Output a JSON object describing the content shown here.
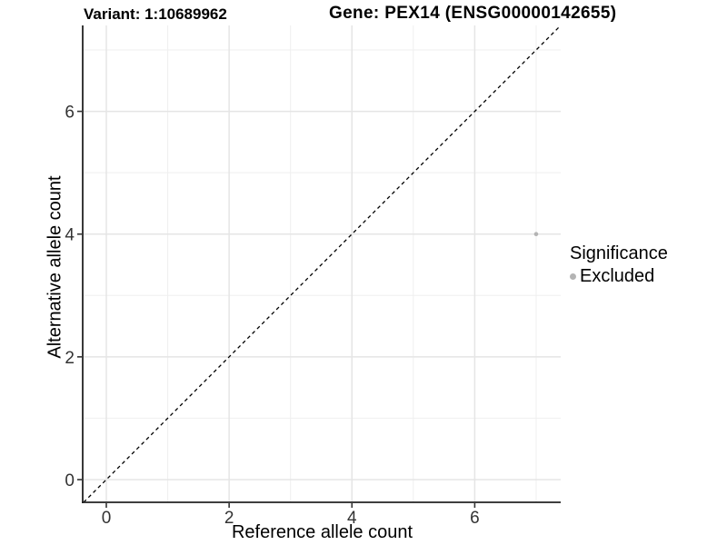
{
  "header": {
    "variant_title": "Variant: 1:10689962",
    "gene_title": "Gene: PEX14 (ENSG00000142655)"
  },
  "chart_data": {
    "type": "scatter",
    "xlabel": "Reference allele count",
    "ylabel": "Alternative allele count",
    "xlim": [
      -0.37,
      7.4
    ],
    "ylim": [
      -0.37,
      7.4
    ],
    "x_ticks": [
      0,
      2,
      4,
      6
    ],
    "y_ticks": [
      0,
      2,
      4,
      6
    ],
    "grid": true,
    "grid_major": [
      0,
      2,
      4,
      6
    ],
    "grid_minor": [
      1,
      3,
      5,
      7
    ],
    "identity_line": {
      "slope": 1,
      "intercept": 0,
      "style": "dashed",
      "color": "#000000"
    },
    "series": [
      {
        "name": "Excluded",
        "color": "#b4b4b4",
        "points": [
          {
            "x": 7,
            "y": 4
          }
        ]
      }
    ],
    "legend": {
      "title": "Significance",
      "position": "right",
      "entries": [
        {
          "label": "Excluded",
          "color": "#b4b4b4"
        }
      ]
    },
    "colors": {
      "axis_line": "#222222",
      "tick": "#333333",
      "tick_label": "#333333",
      "grid_major": "#e5e5e5",
      "grid_minor": "#efefef",
      "background": "#ffffff"
    }
  }
}
